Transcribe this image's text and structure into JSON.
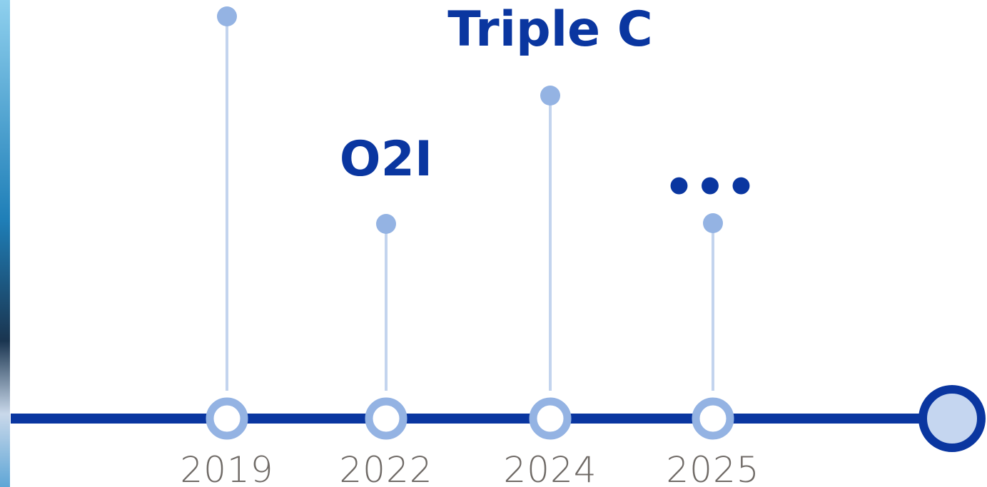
{
  "milestones": [
    {
      "year": "2019"
    },
    {
      "year": "2022",
      "label": "O2I"
    },
    {
      "year": "2024",
      "label": "Triple C"
    },
    {
      "year": "2025",
      "label": "•••"
    }
  ]
}
